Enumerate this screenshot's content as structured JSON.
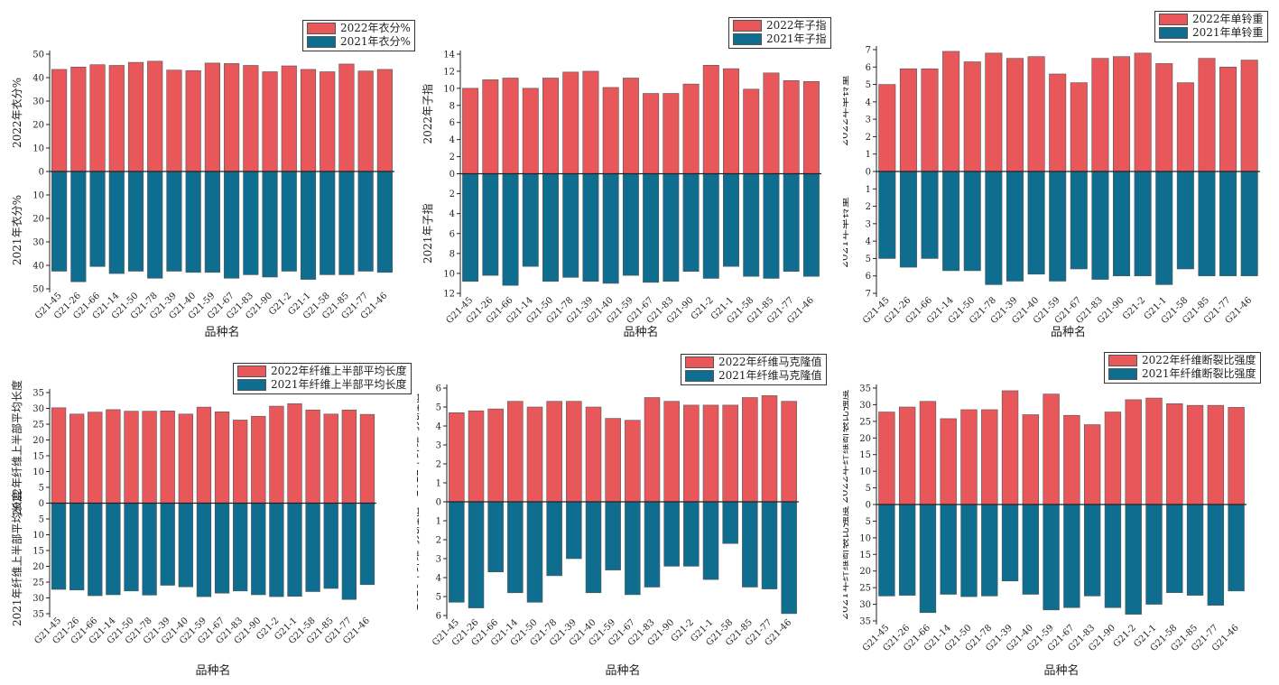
{
  "colors": {
    "y2022": "#e8585a",
    "y2021": "#0f6e8f",
    "axis": "#222222"
  },
  "chart_data": [
    {
      "type": "bar",
      "xlabel": "品种名",
      "ylabel_top": "2022年衣分%",
      "ylabel_bottom": "2021年衣分%",
      "categories": [
        "G21-45",
        "G21-26",
        "G21-66",
        "G21-14",
        "G21-50",
        "G21-78",
        "G21-39",
        "G21-40",
        "G21-59",
        "G21-67",
        "G21-83",
        "G21-90",
        "G21-2",
        "G21-1",
        "G21-58",
        "G21-85",
        "G21-77",
        "G21-46"
      ],
      "series": [
        {
          "name": "2022年衣分%",
          "values": [
            43.5,
            44.5,
            45.5,
            45.2,
            46.5,
            47.0,
            43.2,
            43.0,
            46.2,
            46.0,
            45.2,
            42.5,
            45.0,
            43.5,
            42.5,
            45.8,
            42.8,
            43.5
          ]
        },
        {
          "name": "2021年衣分%",
          "values": [
            42.5,
            47.0,
            40.5,
            43.5,
            42.5,
            45.5,
            42.5,
            43.0,
            43.0,
            45.5,
            44.0,
            45.0,
            42.5,
            46.0,
            44.0,
            44.0,
            42.5,
            43.0
          ]
        }
      ],
      "ylim_top": [
        0,
        50
      ],
      "ticks_top": [
        0,
        10,
        20,
        30,
        40,
        50
      ],
      "ylim_bottom": [
        0,
        50
      ],
      "ticks_bottom": [
        0,
        10,
        20,
        30,
        40,
        50
      ]
    },
    {
      "type": "bar",
      "xlabel": "品种名",
      "ylabel_top": "2022年子指",
      "ylabel_bottom": "2021年子指",
      "categories": [
        "G21-45",
        "G21-26",
        "G21-66",
        "G21-14",
        "G21-50",
        "G21-78",
        "G21-39",
        "G21-40",
        "G21-59",
        "G21-67",
        "G21-83",
        "G21-90",
        "G21-2",
        "G21-1",
        "G21-58",
        "G21-85",
        "G21-77",
        "G21-46"
      ],
      "series": [
        {
          "name": "2022年子指",
          "values": [
            10.0,
            11.0,
            11.2,
            10.0,
            11.2,
            11.9,
            12.0,
            10.1,
            11.2,
            9.4,
            9.4,
            10.5,
            12.7,
            12.3,
            9.9,
            11.8,
            10.9,
            10.8
          ]
        },
        {
          "name": "2021年子指",
          "values": [
            10.8,
            10.2,
            11.2,
            9.3,
            10.8,
            10.4,
            10.8,
            11.0,
            10.2,
            10.9,
            10.8,
            9.8,
            10.5,
            9.3,
            10.3,
            10.5,
            9.8,
            10.3
          ]
        }
      ],
      "ylim_top": [
        0,
        14
      ],
      "ticks_top": [
        0,
        2,
        4,
        6,
        8,
        10,
        12,
        14
      ],
      "ylim_bottom": [
        0,
        12
      ],
      "ticks_bottom": [
        0,
        2,
        4,
        6,
        8,
        10,
        12
      ]
    },
    {
      "type": "bar",
      "xlabel": "品种名",
      "ylabel_top": "2022年单铃重",
      "ylabel_bottom": "2021年单铃重",
      "categories": [
        "G21-45",
        "G21-26",
        "G21-66",
        "G21-14",
        "G21-50",
        "G21-78",
        "G21-39",
        "G21-40",
        "G21-59",
        "G21-67",
        "G21-83",
        "G21-90",
        "G21-2",
        "G21-1",
        "G21-58",
        "G21-85",
        "G21-77",
        "G21-46"
      ],
      "series": [
        {
          "name": "2022年单铃重",
          "values": [
            5.0,
            5.9,
            5.9,
            6.9,
            6.3,
            6.8,
            6.5,
            6.6,
            5.6,
            5.1,
            6.5,
            6.6,
            6.8,
            6.2,
            5.1,
            6.5,
            6.0,
            6.4
          ]
        },
        {
          "name": "2021年单铃重",
          "values": [
            5.0,
            5.5,
            5.0,
            5.7,
            5.7,
            6.5,
            6.3,
            5.9,
            6.3,
            5.6,
            6.2,
            6.0,
            6.0,
            6.5,
            5.6,
            6.0,
            6.0,
            6.0
          ]
        }
      ],
      "ylim_top": [
        0,
        7
      ],
      "ticks_top": [
        0,
        1,
        2,
        3,
        4,
        5,
        6,
        7
      ],
      "ylim_bottom": [
        0,
        7
      ],
      "ticks_bottom": [
        0,
        1,
        2,
        3,
        4,
        5,
        6,
        7
      ]
    },
    {
      "type": "bar",
      "xlabel": "品种名",
      "ylabel_top": "2022年纤维上半部平均长度",
      "ylabel_bottom": "2021年纤维上半部平均长度",
      "categories": [
        "G21-45",
        "G21-26",
        "G21-66",
        "G21-14",
        "G21-50",
        "G21-78",
        "G21-39",
        "G21-40",
        "G21-59",
        "G21-67",
        "G21-83",
        "G21-90",
        "G21-2",
        "G21-1",
        "G21-58",
        "G21-85",
        "G21-77",
        "G21-46"
      ],
      "series": [
        {
          "name": "2022年纤维上半部平均长度",
          "values": [
            30.2,
            28.2,
            28.8,
            29.6,
            29.1,
            29.1,
            29.2,
            28.2,
            30.4,
            28.9,
            26.3,
            27.5,
            30.7,
            31.5,
            29.5,
            28.2,
            29.5,
            28.1
          ]
        },
        {
          "name": "2021年纤维上半部平均长度",
          "values": [
            27.3,
            27.5,
            29.3,
            29.0,
            27.8,
            29.1,
            26.0,
            26.5,
            29.6,
            28.5,
            27.8,
            29.0,
            29.6,
            29.5,
            28.0,
            27.0,
            30.5,
            25.8
          ]
        }
      ],
      "ylim_top": [
        0,
        35
      ],
      "ticks_top": [
        0,
        5,
        10,
        15,
        20,
        25,
        30,
        35
      ],
      "ylim_bottom": [
        0,
        35
      ],
      "ticks_bottom": [
        0,
        5,
        10,
        15,
        20,
        25,
        30,
        35
      ]
    },
    {
      "type": "bar",
      "xlabel": "品种名",
      "ylabel_top": "2022年纤维马克隆值",
      "ylabel_bottom": "2021年纤维马克隆值",
      "categories": [
        "G21-45",
        "G21-26",
        "G21-66",
        "G21-14",
        "G21-50",
        "G21-78",
        "G21-39",
        "G21-40",
        "G21-59",
        "G21-67",
        "G21-83",
        "G21-90",
        "G21-2",
        "G21-1",
        "G21-58",
        "G21-85",
        "G21-77",
        "G21-46"
      ],
      "series": [
        {
          "name": "2022年纤维马克隆值",
          "values": [
            4.7,
            4.8,
            4.9,
            5.3,
            5.0,
            5.3,
            5.3,
            5.0,
            4.4,
            4.3,
            5.5,
            5.3,
            5.1,
            5.1,
            5.1,
            5.5,
            5.6,
            5.3
          ]
        },
        {
          "name": "2021年纤维马克隆值",
          "values": [
            5.3,
            5.6,
            3.7,
            4.8,
            5.3,
            3.9,
            3.0,
            4.8,
            3.6,
            4.9,
            4.5,
            3.4,
            3.4,
            4.1,
            2.2,
            4.5,
            4.6,
            5.9
          ]
        }
      ],
      "ylim_top": [
        0,
        6
      ],
      "ticks_top": [
        0,
        1,
        2,
        3,
        4,
        5,
        6
      ],
      "ylim_bottom": [
        0,
        6
      ],
      "ticks_bottom": [
        0,
        1,
        2,
        3,
        4,
        5,
        6
      ]
    },
    {
      "type": "bar",
      "xlabel": "品种名",
      "ylabel_top": "2022年纤维断裂比强度",
      "ylabel_bottom": "2021年纤维断裂比强度",
      "categories": [
        "G21-45",
        "G21-26",
        "G21-66",
        "G21-14",
        "G21-50",
        "G21-78",
        "G21-39",
        "G21-40",
        "G21-59",
        "G21-67",
        "G21-83",
        "G21-90",
        "G21-2",
        "G21-1",
        "G21-58",
        "G21-85",
        "G21-77",
        "G21-46"
      ],
      "series": [
        {
          "name": "2022年纤维断裂比强度",
          "values": [
            27.8,
            29.3,
            31.0,
            25.8,
            28.5,
            28.5,
            34.2,
            27.0,
            33.2,
            26.8,
            24.0,
            27.8,
            31.5,
            32.0,
            30.3,
            29.8,
            29.8,
            29.2
          ]
        },
        {
          "name": "2021年纤维断裂比强度",
          "values": [
            27.5,
            27.3,
            32.5,
            27.0,
            27.7,
            27.5,
            23.0,
            27.0,
            31.7,
            31.0,
            27.5,
            31.0,
            33.0,
            30.0,
            26.5,
            27.3,
            30.3,
            26.0
          ]
        }
      ],
      "ylim_top": [
        0,
        35
      ],
      "ticks_top": [
        0,
        5,
        10,
        15,
        20,
        25,
        30,
        35
      ],
      "ylim_bottom": [
        0,
        35
      ],
      "ticks_bottom": [
        0,
        5,
        10,
        15,
        20,
        25,
        30,
        35
      ]
    }
  ]
}
